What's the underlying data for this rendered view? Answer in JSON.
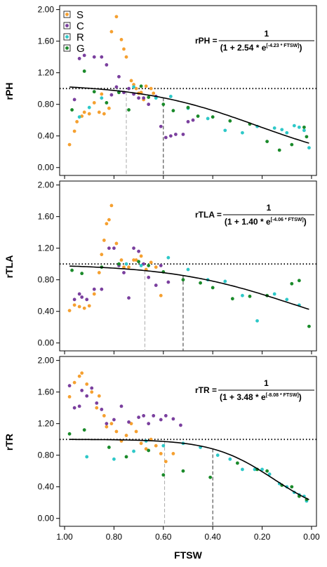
{
  "colors": {
    "S": "#f5a030",
    "C": "#7a3f9e",
    "R": "#2ec8c8",
    "G": "#1a8a2a",
    "fit": "#000000",
    "ref": "#000000",
    "vline_gray": "#aaaaaa",
    "vline_dark": "#333333"
  },
  "legend": [
    {
      "key": "S",
      "label": "S"
    },
    {
      "key": "C",
      "label": "C"
    },
    {
      "key": "R",
      "label": "R"
    },
    {
      "key": "G",
      "label": "G"
    }
  ],
  "xlabel": "FTSW",
  "x_ticks": [
    "1.00",
    "0.80",
    "0.60",
    "0.40",
    "0.20",
    "0.00"
  ],
  "chart_data": [
    {
      "type": "scatter",
      "ylabel": "rPH",
      "xlim": [
        1.02,
        -0.02
      ],
      "ylim": [
        -0.1,
        2.05
      ],
      "y_ticks": [
        "0.00",
        "0.40",
        "0.80",
        "1.20",
        "1.60",
        "2.00"
      ],
      "reference_y": 1.0,
      "equation": {
        "lhs": "rPH = ",
        "num": "1",
        "den_pre": "(1 + 2.54 * e",
        "den_exp": "[-4.23 * FTSW]",
        "den_post": ")"
      },
      "fit": {
        "a": 2.54,
        "b": 4.23,
        "scale": 1.06
      },
      "vlines": [
        {
          "x": 0.75,
          "style": "gray"
        },
        {
          "x": 0.6,
          "style": "dark"
        }
      ],
      "series": [
        {
          "key": "S",
          "points": [
            [
              0.98,
              0.29
            ],
            [
              0.96,
              0.46
            ],
            [
              0.95,
              0.58
            ],
            [
              0.93,
              0.65
            ],
            [
              0.92,
              0.7
            ],
            [
              0.9,
              0.68
            ],
            [
              0.88,
              0.82
            ],
            [
              0.86,
              0.7
            ],
            [
              0.85,
              0.93
            ],
            [
              0.84,
              0.68
            ],
            [
              0.82,
              0.75
            ],
            [
              0.81,
              1.72
            ],
            [
              0.79,
              1.91
            ],
            [
              0.77,
              1.62
            ],
            [
              0.76,
              1.5
            ],
            [
              0.75,
              1.4
            ],
            [
              0.73,
              1.1
            ],
            [
              0.72,
              1.05
            ],
            [
              0.71,
              1.0
            ],
            [
              0.7,
              0.94
            ],
            [
              0.69,
              0.95
            ],
            [
              0.68,
              0.86
            ],
            [
              0.67,
              1.03
            ],
            [
              0.65,
              1.0
            ],
            [
              0.64,
              0.94
            ]
          ]
        },
        {
          "key": "C",
          "points": [
            [
              0.96,
              0.86
            ],
            [
              0.94,
              1.38
            ],
            [
              0.92,
              1.42
            ],
            [
              0.88,
              1.4
            ],
            [
              0.85,
              1.4
            ],
            [
              0.83,
              1.3
            ],
            [
              0.81,
              0.92
            ],
            [
              0.79,
              1.02
            ],
            [
              0.78,
              1.15
            ],
            [
              0.76,
              0.95
            ],
            [
              0.74,
              1.0
            ],
            [
              0.72,
              0.93
            ],
            [
              0.7,
              0.88
            ],
            [
              0.68,
              0.88
            ],
            [
              0.66,
              0.8
            ],
            [
              0.63,
              0.9
            ],
            [
              0.61,
              0.52
            ],
            [
              0.59,
              0.38
            ],
            [
              0.57,
              0.4
            ],
            [
              0.55,
              0.42
            ],
            [
              0.52,
              0.42
            ],
            [
              0.5,
              0.58
            ],
            [
              0.48,
              0.6
            ]
          ]
        },
        {
          "key": "R",
          "points": [
            [
              0.94,
              0.64
            ],
            [
              0.9,
              0.76
            ],
            [
              0.85,
              0.88
            ],
            [
              0.78,
              0.96
            ],
            [
              0.72,
              1.02
            ],
            [
              0.63,
              0.88
            ],
            [
              0.57,
              0.9
            ],
            [
              0.5,
              0.75
            ],
            [
              0.42,
              0.62
            ],
            [
              0.35,
              0.47
            ],
            [
              0.28,
              0.44
            ],
            [
              0.22,
              0.52
            ],
            [
              0.15,
              0.5
            ],
            [
              0.12,
              0.48
            ],
            [
              0.1,
              0.44
            ],
            [
              0.07,
              0.53
            ],
            [
              0.05,
              0.51
            ],
            [
              0.03,
              0.47
            ],
            [
              0.01,
              0.25
            ]
          ]
        },
        {
          "key": "G",
          "points": [
            [
              0.97,
              0.73
            ],
            [
              0.92,
              1.22
            ],
            [
              0.88,
              0.96
            ],
            [
              0.83,
              0.82
            ],
            [
              0.78,
              0.95
            ],
            [
              0.74,
              0.73
            ],
            [
              0.69,
              1.03
            ],
            [
              0.66,
              0.89
            ],
            [
              0.6,
              0.8
            ],
            [
              0.56,
              0.72
            ],
            [
              0.5,
              0.76
            ],
            [
              0.46,
              0.65
            ],
            [
              0.4,
              0.64
            ],
            [
              0.33,
              0.59
            ],
            [
              0.25,
              0.55
            ],
            [
              0.18,
              0.33
            ],
            [
              0.13,
              0.22
            ],
            [
              0.08,
              0.29
            ],
            [
              0.03,
              0.51
            ],
            [
              0.02,
              0.39
            ]
          ]
        }
      ]
    },
    {
      "type": "scatter",
      "ylabel": "rTLA",
      "xlim": [
        1.02,
        -0.02
      ],
      "ylim": [
        -0.1,
        2.05
      ],
      "y_ticks": [
        "0.00",
        "0.40",
        "0.80",
        "1.20",
        "1.60",
        "2.00"
      ],
      "reference_y": 1.0,
      "equation": {
        "lhs": "rTLA = ",
        "num": "1",
        "den_pre": "(1 + 1.40 * e",
        "den_exp": "[-4.06 * FTSW]",
        "den_post": ")"
      },
      "fit": {
        "a": 1.4,
        "b": 4.06,
        "scale": 0.999
      },
      "vlines": [
        {
          "x": 0.675,
          "style": "gray"
        },
        {
          "x": 0.52,
          "style": "dark"
        }
      ],
      "series": [
        {
          "key": "S",
          "points": [
            [
              0.98,
              0.41
            ],
            [
              0.96,
              0.48
            ],
            [
              0.94,
              0.46
            ],
            [
              0.92,
              0.44
            ],
            [
              0.9,
              0.47
            ],
            [
              0.88,
              0.62
            ],
            [
              0.86,
              0.89
            ],
            [
              0.85,
              1.12
            ],
            [
              0.84,
              1.3
            ],
            [
              0.83,
              1.51
            ],
            [
              0.82,
              1.56
            ],
            [
              0.81,
              1.74
            ],
            [
              0.79,
              1.26
            ],
            [
              0.77,
              1.05
            ],
            [
              0.76,
              0.96
            ],
            [
              0.74,
              0.96
            ],
            [
              0.72,
              1.05
            ],
            [
              0.71,
              1.05
            ],
            [
              0.69,
              1.1
            ],
            [
              0.67,
              0.93
            ],
            [
              0.65,
              1.02
            ],
            [
              0.63,
              0.96
            ],
            [
              0.61,
              0.6
            ]
          ]
        },
        {
          "key": "C",
          "points": [
            [
              0.96,
              0.55
            ],
            [
              0.94,
              0.62
            ],
            [
              0.93,
              0.58
            ],
            [
              0.91,
              0.55
            ],
            [
              0.88,
              0.68
            ],
            [
              0.85,
              0.68
            ],
            [
              0.82,
              1.2
            ],
            [
              0.8,
              1.2
            ],
            [
              0.78,
              0.98
            ],
            [
              0.76,
              0.89
            ],
            [
              0.74,
              0.57
            ],
            [
              0.72,
              1.2
            ],
            [
              0.7,
              1.16
            ],
            [
              0.68,
              1.0
            ],
            [
              0.66,
              0.83
            ],
            [
              0.63,
              0.73
            ],
            [
              0.61,
              0.98
            ],
            [
              0.58,
              0.77
            ]
          ]
        },
        {
          "key": "R",
          "points": [
            [
              0.75,
              1.0
            ],
            [
              0.69,
              0.98
            ],
            [
              0.58,
              1.08
            ],
            [
              0.5,
              0.93
            ],
            [
              0.42,
              0.8
            ],
            [
              0.35,
              0.78
            ],
            [
              0.28,
              0.6
            ],
            [
              0.22,
              0.28
            ],
            [
              0.15,
              0.62
            ],
            [
              0.1,
              0.55
            ],
            [
              0.05,
              0.48
            ]
          ]
        },
        {
          "key": "G",
          "points": [
            [
              0.97,
              0.92
            ],
            [
              0.93,
              0.88
            ],
            [
              0.85,
              0.96
            ],
            [
              0.78,
              1.0
            ],
            [
              0.7,
              1.03
            ],
            [
              0.66,
              0.98
            ],
            [
              0.6,
              0.9
            ],
            [
              0.52,
              0.8
            ],
            [
              0.45,
              0.76
            ],
            [
              0.4,
              0.7
            ],
            [
              0.32,
              0.56
            ],
            [
              0.25,
              0.59
            ],
            [
              0.18,
              0.6
            ],
            [
              0.08,
              0.75
            ],
            [
              0.05,
              0.79
            ],
            [
              0.01,
              0.21
            ]
          ]
        }
      ]
    },
    {
      "type": "scatter",
      "ylabel": "rTR",
      "xlim": [
        1.02,
        -0.02
      ],
      "ylim": [
        -0.1,
        2.05
      ],
      "y_ticks": [
        "0.00",
        "0.40",
        "0.80",
        "1.20",
        "1.60",
        "2.00"
      ],
      "reference_y": 1.0,
      "equation": {
        "lhs": "rTR = ",
        "num": "1",
        "den_pre": "(1 + 3.48 * e",
        "den_exp": "[-8.08 * FTSW]",
        "den_post": ")"
      },
      "fit": {
        "a": 3.48,
        "b": 8.08,
        "scale": 1.001
      },
      "vlines": [
        {
          "x": 0.595,
          "style": "gray"
        },
        {
          "x": 0.4,
          "style": "dark"
        }
      ],
      "series": [
        {
          "key": "S",
          "points": [
            [
              0.98,
              1.54
            ],
            [
              0.96,
              1.72
            ],
            [
              0.94,
              1.8
            ],
            [
              0.93,
              1.84
            ],
            [
              0.91,
              1.7
            ],
            [
              0.89,
              1.6
            ],
            [
              0.87,
              1.4
            ],
            [
              0.86,
              1.55
            ],
            [
              0.84,
              1.3
            ],
            [
              0.83,
              1.16
            ],
            [
              0.81,
              1.2
            ],
            [
              0.79,
              1.1
            ],
            [
              0.77,
              0.98
            ],
            [
              0.75,
              1.05
            ],
            [
              0.73,
              1.2
            ],
            [
              0.71,
              1.1
            ],
            [
              0.69,
              0.95
            ],
            [
              0.67,
              0.88
            ],
            [
              0.65,
              1.0
            ],
            [
              0.63,
              0.92
            ],
            [
              0.61,
              0.82
            ],
            [
              0.59,
              0.72
            ],
            [
              0.56,
              0.82
            ]
          ]
        },
        {
          "key": "C",
          "points": [
            [
              0.98,
              1.68
            ],
            [
              0.96,
              1.4
            ],
            [
              0.94,
              1.42
            ],
            [
              0.93,
              1.62
            ],
            [
              0.91,
              1.55
            ],
            [
              0.89,
              1.65
            ],
            [
              0.87,
              1.46
            ],
            [
              0.85,
              1.38
            ],
            [
              0.83,
              1.2
            ],
            [
              0.8,
              1.25
            ],
            [
              0.77,
              1.42
            ],
            [
              0.74,
              1.22
            ],
            [
              0.7,
              1.28
            ],
            [
              0.68,
              1.3
            ],
            [
              0.66,
              1.2
            ],
            [
              0.64,
              1.3
            ],
            [
              0.61,
              1.25
            ],
            [
              0.59,
              1.3
            ],
            [
              0.56,
              1.26
            ],
            [
              0.53,
              1.18
            ]
          ]
        },
        {
          "key": "R",
          "points": [
            [
              0.91,
              0.78
            ],
            [
              0.8,
              0.75
            ],
            [
              0.72,
              0.85
            ],
            [
              0.67,
              0.98
            ],
            [
              0.6,
              0.92
            ],
            [
              0.52,
              0.95
            ],
            [
              0.45,
              0.9
            ],
            [
              0.38,
              0.8
            ],
            [
              0.33,
              0.75
            ],
            [
              0.28,
              0.62
            ],
            [
              0.23,
              0.62
            ],
            [
              0.2,
              0.62
            ],
            [
              0.17,
              0.56
            ],
            [
              0.13,
              0.44
            ],
            [
              0.1,
              0.4
            ],
            [
              0.07,
              0.33
            ],
            [
              0.05,
              0.3
            ],
            [
              0.03,
              0.28
            ],
            [
              0.02,
              0.22
            ]
          ]
        },
        {
          "key": "G",
          "points": [
            [
              0.98,
              1.07
            ],
            [
              0.92,
              1.12
            ],
            [
              0.82,
              0.9
            ],
            [
              0.75,
              0.78
            ],
            [
              0.66,
              0.86
            ],
            [
              0.6,
              0.55
            ],
            [
              0.52,
              0.6
            ],
            [
              0.41,
              0.52
            ],
            [
              0.3,
              0.7
            ],
            [
              0.22,
              0.62
            ],
            [
              0.18,
              0.6
            ],
            [
              0.12,
              0.42
            ],
            [
              0.08,
              0.4
            ],
            [
              0.05,
              0.28
            ],
            [
              0.02,
              0.24
            ]
          ]
        }
      ]
    }
  ]
}
